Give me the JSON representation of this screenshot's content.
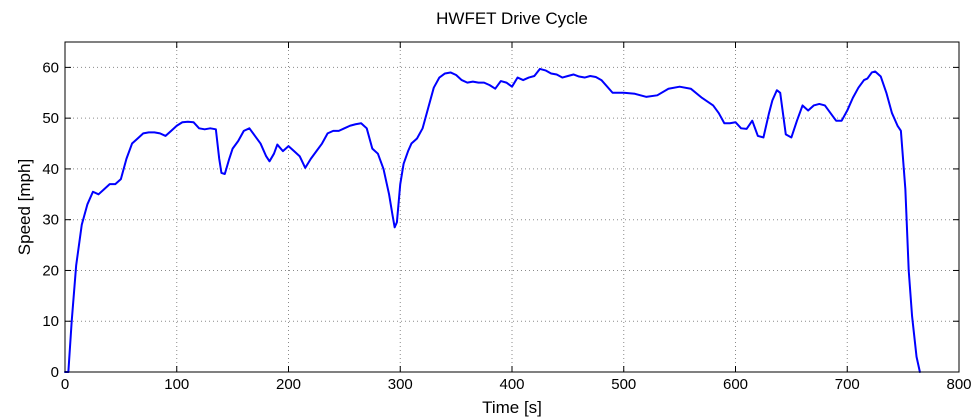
{
  "chart_data": {
    "type": "line",
    "title": "HWFET Drive Cycle",
    "xlabel": "Time [s]",
    "ylabel": "Speed [mph]",
    "xlim": [
      0,
      800
    ],
    "ylim": [
      0,
      65
    ],
    "xticks": [
      0,
      100,
      200,
      300,
      400,
      500,
      600,
      700,
      800
    ],
    "yticks": [
      0,
      10,
      20,
      30,
      40,
      50,
      60
    ],
    "grid": true,
    "series_color": "#0000ff",
    "series": [
      {
        "x": [
          0,
          3,
          6,
          10,
          15,
          20,
          25,
          30,
          35,
          40,
          45,
          50,
          55,
          60,
          65,
          70,
          75,
          80,
          85,
          90,
          95,
          100,
          105,
          110,
          115,
          120,
          125,
          130,
          135,
          138,
          140,
          143,
          147,
          150,
          155,
          160,
          165,
          170,
          175,
          180,
          183,
          187,
          190,
          195,
          200,
          205,
          210,
          215,
          220,
          225,
          230,
          235,
          240,
          245,
          250,
          255,
          260,
          265,
          270,
          275,
          280,
          285,
          290,
          293,
          295,
          297,
          300,
          303,
          307,
          310,
          315,
          320,
          325,
          330,
          335,
          340,
          345,
          350,
          355,
          360,
          365,
          370,
          375,
          380,
          385,
          390,
          395,
          400,
          405,
          410,
          415,
          420,
          425,
          430,
          435,
          440,
          445,
          450,
          455,
          460,
          465,
          470,
          475,
          480,
          490,
          500,
          510,
          520,
          530,
          540,
          550,
          560,
          570,
          580,
          585,
          590,
          595,
          600,
          605,
          610,
          615,
          620,
          625,
          630,
          633,
          637,
          640,
          645,
          650,
          655,
          660,
          665,
          670,
          675,
          680,
          685,
          690,
          695,
          700,
          705,
          710,
          715,
          718,
          722,
          725,
          730,
          735,
          740,
          745,
          748,
          752,
          755,
          758,
          762,
          765
        ],
        "y": [
          0,
          0,
          10,
          21,
          29,
          33,
          35.5,
          35,
          36,
          37,
          37,
          38,
          42,
          45,
          46,
          47,
          47.2,
          47.2,
          47,
          46.5,
          47.5,
          48.5,
          49.2,
          49.3,
          49.2,
          48,
          47.8,
          48,
          47.8,
          42,
          39.2,
          39,
          42,
          44,
          45.5,
          47.5,
          48,
          46.5,
          45,
          42.5,
          41.5,
          43,
          44.8,
          43.5,
          44.5,
          43.5,
          42.5,
          40.2,
          42,
          43.5,
          45,
          47,
          47.5,
          47.5,
          48,
          48.5,
          48.8,
          49,
          48,
          44,
          43,
          40,
          35,
          31,
          28.5,
          29.5,
          37,
          41,
          43.5,
          45,
          46,
          48,
          52,
          56,
          58,
          58.8,
          59,
          58.5,
          57.5,
          57,
          57.2,
          57,
          57,
          56.5,
          55.8,
          57.3,
          57,
          56.2,
          58,
          57.5,
          58,
          58.3,
          59.7,
          59.4,
          58.8,
          58.6,
          58,
          58.3,
          58.6,
          58.2,
          58,
          58.3,
          58.1,
          57.5,
          55,
          55,
          54.8,
          54.2,
          54.5,
          55.8,
          56.2,
          55.8,
          54,
          52.5,
          51,
          49,
          49,
          49.2,
          48,
          47.9,
          49.5,
          46.5,
          46.2,
          51,
          53.5,
          55.5,
          55,
          46.8,
          46.2,
          49.5,
          52.5,
          51.5,
          52.5,
          52.8,
          52.5,
          51,
          49.5,
          49.5,
          51.5,
          54,
          56,
          57.5,
          57.8,
          59,
          59.2,
          58.2,
          55,
          51,
          48.5,
          47.5,
          36,
          20,
          11,
          3,
          0
        ]
      }
    ]
  }
}
